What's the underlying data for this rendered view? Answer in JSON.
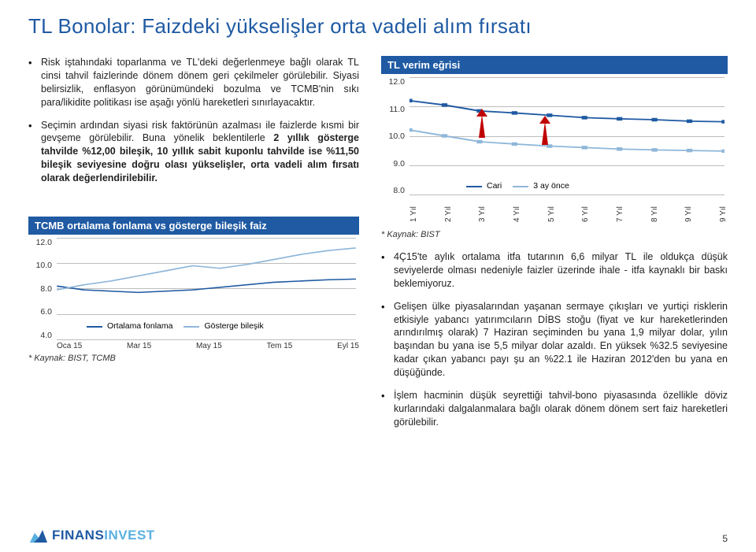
{
  "title": "TL Bonolar: Faizdeki yükselişler orta vadeli alım fırsatı",
  "left_bullets": [
    {
      "plain": "Risk iştahındaki toparlanma ve TL'deki değerlenmeye bağlı olarak TL cinsi tahvil faizlerinde dönem dönem geri çekilmeler görülebilir. Siyasi belirsizlik, enflasyon görünümündeki bozulma ve TCMB'nin sıkı para/likidite politikası ise aşağı yönlü hareketleri sınırlayacaktır."
    },
    {
      "plain": "Seçimin ardından siyasi risk faktörünün azalması ile faizlerde kısmi bir gevşeme görülebilir. Buna yönelik beklentilerle ",
      "bold": "2 yıllık gösterge tahvilde %12,00 bileşik, 10 yıllık sabit kuponlu tahvilde ise %11,50 bileşik seviyesine doğru olası yükselişler, orta vadeli alım fırsatı olarak değerlendirilebilir."
    }
  ],
  "right_bullets": [
    "4Ç15'te aylık ortalama itfa tutarının 6,6 milyar TL ile oldukça düşük seviyelerde olması nedeniyle faizler üzerinde ihale - itfa kaynaklı bir baskı beklemiyoruz.",
    "Gelişen ülke piyasalarından yaşanan sermaye çıkışları ve yurtiçi risklerin etkisiyle yabancı yatırımcıların DİBS stoğu (fiyat ve kur hareketlerinden arındırılmış olarak) 7 Haziran seçiminden bu yana 1,9 milyar dolar, yılın başından bu yana ise 5,5 milyar dolar azaldı. En yüksek %32.5 seviyesine kadar çıkan yabancı payı şu an %22.1 ile Haziran 2012'den bu yana en düşüğünde.",
    "İşlem hacminin düşük seyrettiği tahvil-bono piyasasında özellikle döviz kurlarındaki dalgalanmalara bağlı olarak dönem dönem sert faiz hareketleri görülebilir."
  ],
  "chart1": {
    "title": "TL verim eğrisi",
    "yticks": [
      "12.0",
      "11.0",
      "10.0",
      "9.0",
      "8.0"
    ],
    "ylim": [
      8.0,
      12.0
    ],
    "xticks": [
      "1 Yıl",
      "2 Yıl",
      "3 Yıl",
      "4 Yıl",
      "5 Yıl",
      "6 Yıl",
      "7 Yıl",
      "8 Yıl",
      "9 Yıl",
      "9 Yıl"
    ],
    "series": [
      {
        "name": "Cari",
        "color": "#1f5aa3",
        "values": [
          11.2,
          11.05,
          10.85,
          10.78,
          10.7,
          10.62,
          10.58,
          10.55,
          10.5,
          10.48
        ]
      },
      {
        "name": "3 ay önce",
        "color": "#8fb7d9",
        "values": [
          10.2,
          10.0,
          9.8,
          9.72,
          9.65,
          9.6,
          9.55,
          9.52,
          9.5,
          9.48
        ]
      }
    ],
    "legend_cari": "Cari",
    "legend_3ay": "3 ay önce",
    "note": "* Kaynak: BIST"
  },
  "chart2": {
    "title": "TCMB ortalama fonlama vs gösterge bileşik faiz",
    "yticks": [
      "12.0",
      "10.0",
      "8.0",
      "6.0",
      "4.0"
    ],
    "ylim": [
      4.0,
      12.0
    ],
    "xticks": [
      "Oca 15",
      "Mar 15",
      "May 15",
      "Tem 15",
      "Eyl 15"
    ],
    "series": [
      {
        "name": "Ortalama fonlama",
        "color": "#1f5aa3",
        "values": [
          8.2,
          7.9,
          7.8,
          7.7,
          7.8,
          7.9,
          8.1,
          8.3,
          8.5,
          8.6,
          8.7,
          8.75
        ]
      },
      {
        "name": "Gösterge bileşik",
        "color": "#8fb7d9",
        "values": [
          7.9,
          8.3,
          8.6,
          9.0,
          9.4,
          9.8,
          9.6,
          9.9,
          10.3,
          10.7,
          11.0,
          11.2
        ]
      }
    ],
    "legend_ort": "Ortalama fonlama",
    "legend_gos": "Gösterge bileşik",
    "note": "* Kaynak: BIST, TCMB"
  },
  "footer": {
    "brand_1": "FINANS",
    "brand_2": "INVEST",
    "page": "5"
  }
}
